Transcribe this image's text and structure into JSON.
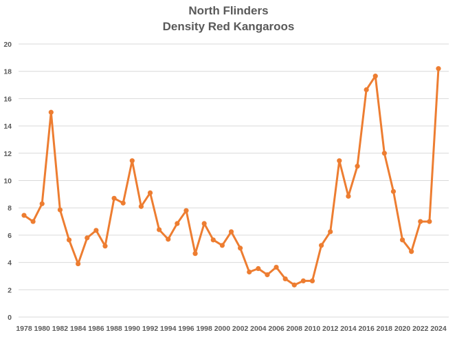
{
  "chart_data": {
    "type": "line",
    "title": "North Flinders",
    "subtitle": "Density Red Kangaroos",
    "xlabel": "",
    "ylabel": "",
    "ylim": [
      0,
      20
    ],
    "yticks": [
      0,
      2,
      4,
      6,
      8,
      10,
      12,
      14,
      16,
      18,
      20
    ],
    "grid": true,
    "legend": "none",
    "line_color": "#ED7D31",
    "x": [
      1978,
      1979,
      1980,
      1981,
      1982,
      1983,
      1984,
      1985,
      1986,
      1987,
      1988,
      1989,
      1990,
      1991,
      1992,
      1993,
      1994,
      1995,
      1996,
      1997,
      1998,
      1999,
      2000,
      2001,
      2002,
      2003,
      2004,
      2005,
      2006,
      2007,
      2008,
      2009,
      2010,
      2011,
      2012,
      2013,
      2014,
      2015,
      2016,
      2017,
      2018,
      2019,
      2020,
      2021,
      2022,
      2023,
      2024
    ],
    "xtick_labels": [
      "1978",
      "1980",
      "1982",
      "1984",
      "1986",
      "1988",
      "1990",
      "1992",
      "1994",
      "1996",
      "1998",
      "2000",
      "2002",
      "2004",
      "2006",
      "2008",
      "2010",
      "2012",
      "2014",
      "2016",
      "2018",
      "2020",
      "2022",
      "2024"
    ],
    "series": [
      {
        "name": "Density Red Kangaroos",
        "values": [
          7.45,
          7.0,
          8.3,
          15.0,
          7.85,
          5.65,
          3.9,
          5.8,
          6.35,
          5.2,
          8.7,
          8.35,
          11.45,
          8.1,
          9.1,
          6.4,
          5.7,
          6.85,
          7.8,
          4.65,
          6.85,
          5.65,
          5.25,
          6.25,
          5.05,
          3.3,
          3.55,
          3.1,
          3.65,
          2.8,
          2.35,
          2.65,
          2.65,
          5.25,
          6.25,
          11.45,
          8.85,
          11.05,
          16.65,
          17.65,
          12.0,
          9.2,
          5.65,
          4.8,
          7.0,
          7.0,
          18.2
        ]
      }
    ]
  }
}
